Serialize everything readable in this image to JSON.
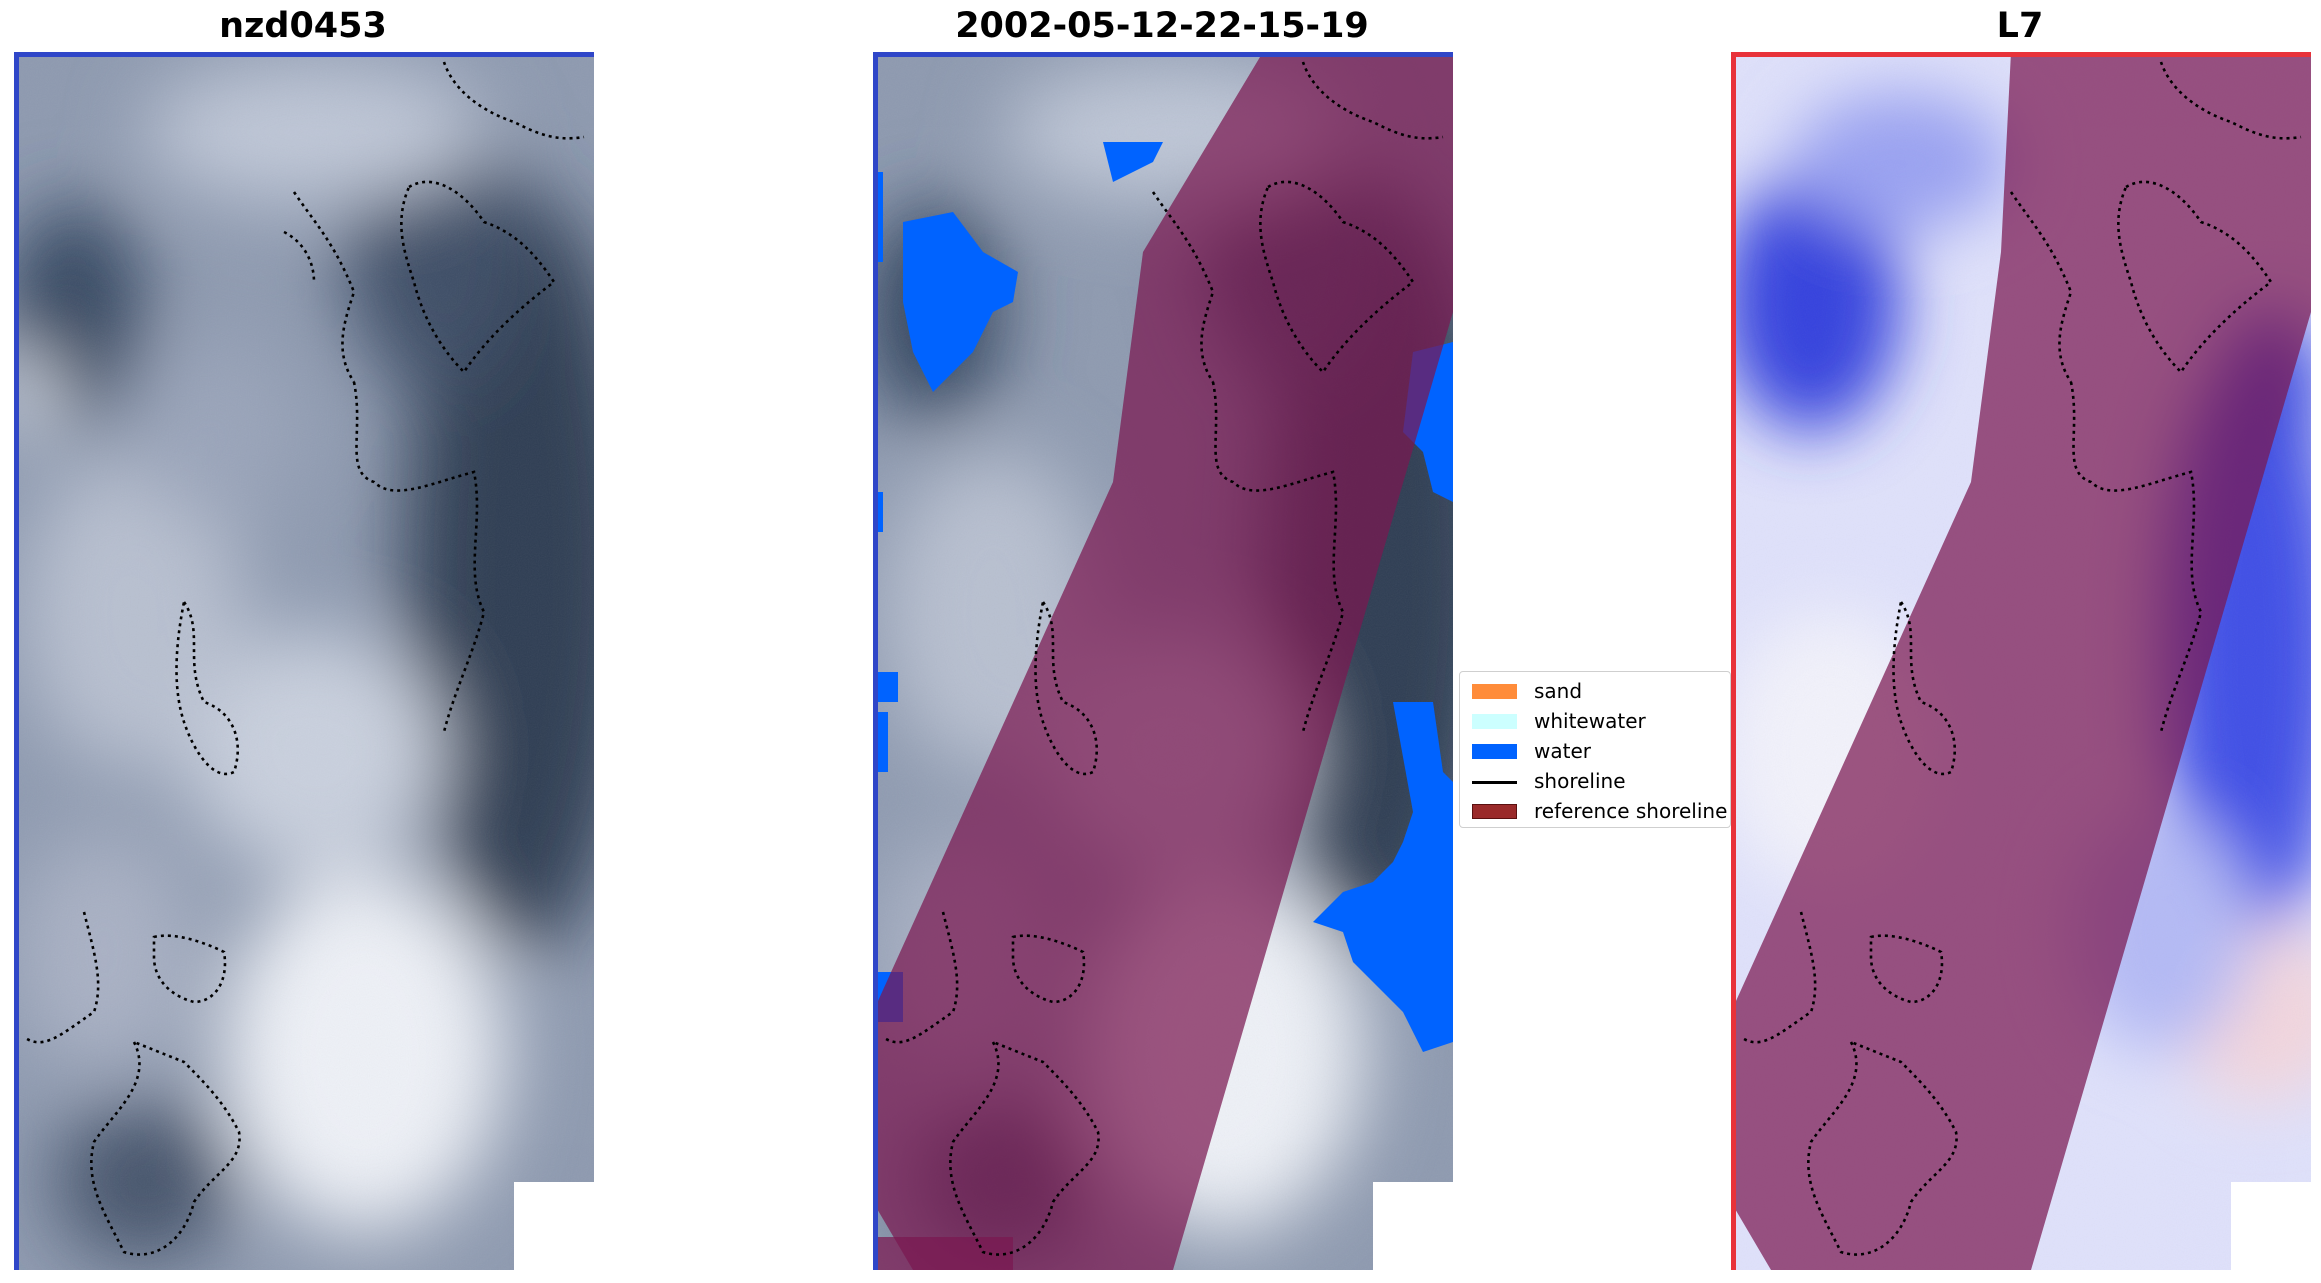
{
  "panels": [
    {
      "title": "nzd0453",
      "kind": "rgb-clouds",
      "frame_color": "#2f46c8"
    },
    {
      "title": "2002-05-12-22-15-19",
      "kind": "classified",
      "frame_color": "#2f46c8"
    },
    {
      "title": "L7",
      "kind": "mndwi",
      "frame_color": "#e8323a"
    }
  ],
  "legend": {
    "items": [
      {
        "label": "sand",
        "color": "#ff8c3a",
        "kind": "patch"
      },
      {
        "label": "whitewater",
        "color": "#ccffff",
        "kind": "patch"
      },
      {
        "label": "water",
        "color": "#0063ff",
        "kind": "patch"
      },
      {
        "label": "shoreline",
        "color": "#000000",
        "kind": "line"
      },
      {
        "label": "reference shoreline",
        "color": "#9a2a2a",
        "kind": "patch"
      }
    ]
  },
  "colors": {
    "cloud_dark": "#2f3d52",
    "cloud_light": "#e8ecf4",
    "reference_band": "#7a1850",
    "water": "#0063ff",
    "index_blue": "#2030d8",
    "index_white": "#f4f4fb"
  }
}
